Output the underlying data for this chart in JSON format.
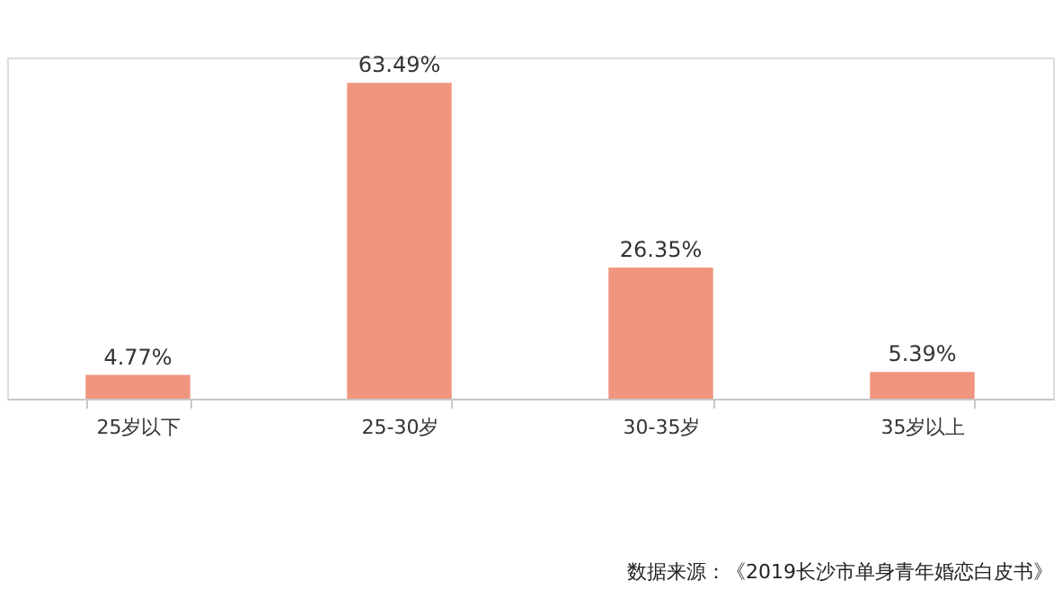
{
  "chart_data": {
    "type": "bar",
    "categories": [
      "25岁以下",
      "25-30岁",
      "30-35岁",
      "35岁以上"
    ],
    "values": [
      4.77,
      63.49,
      26.35,
      5.39
    ],
    "value_labels": [
      "4.77%",
      "63.49%",
      "26.35%",
      "5.39%"
    ],
    "color": "#f0957e",
    "grid": false,
    "annotations": [
      "数据来源：《2019长沙市单身青年婚恋白皮书》"
    ]
  }
}
